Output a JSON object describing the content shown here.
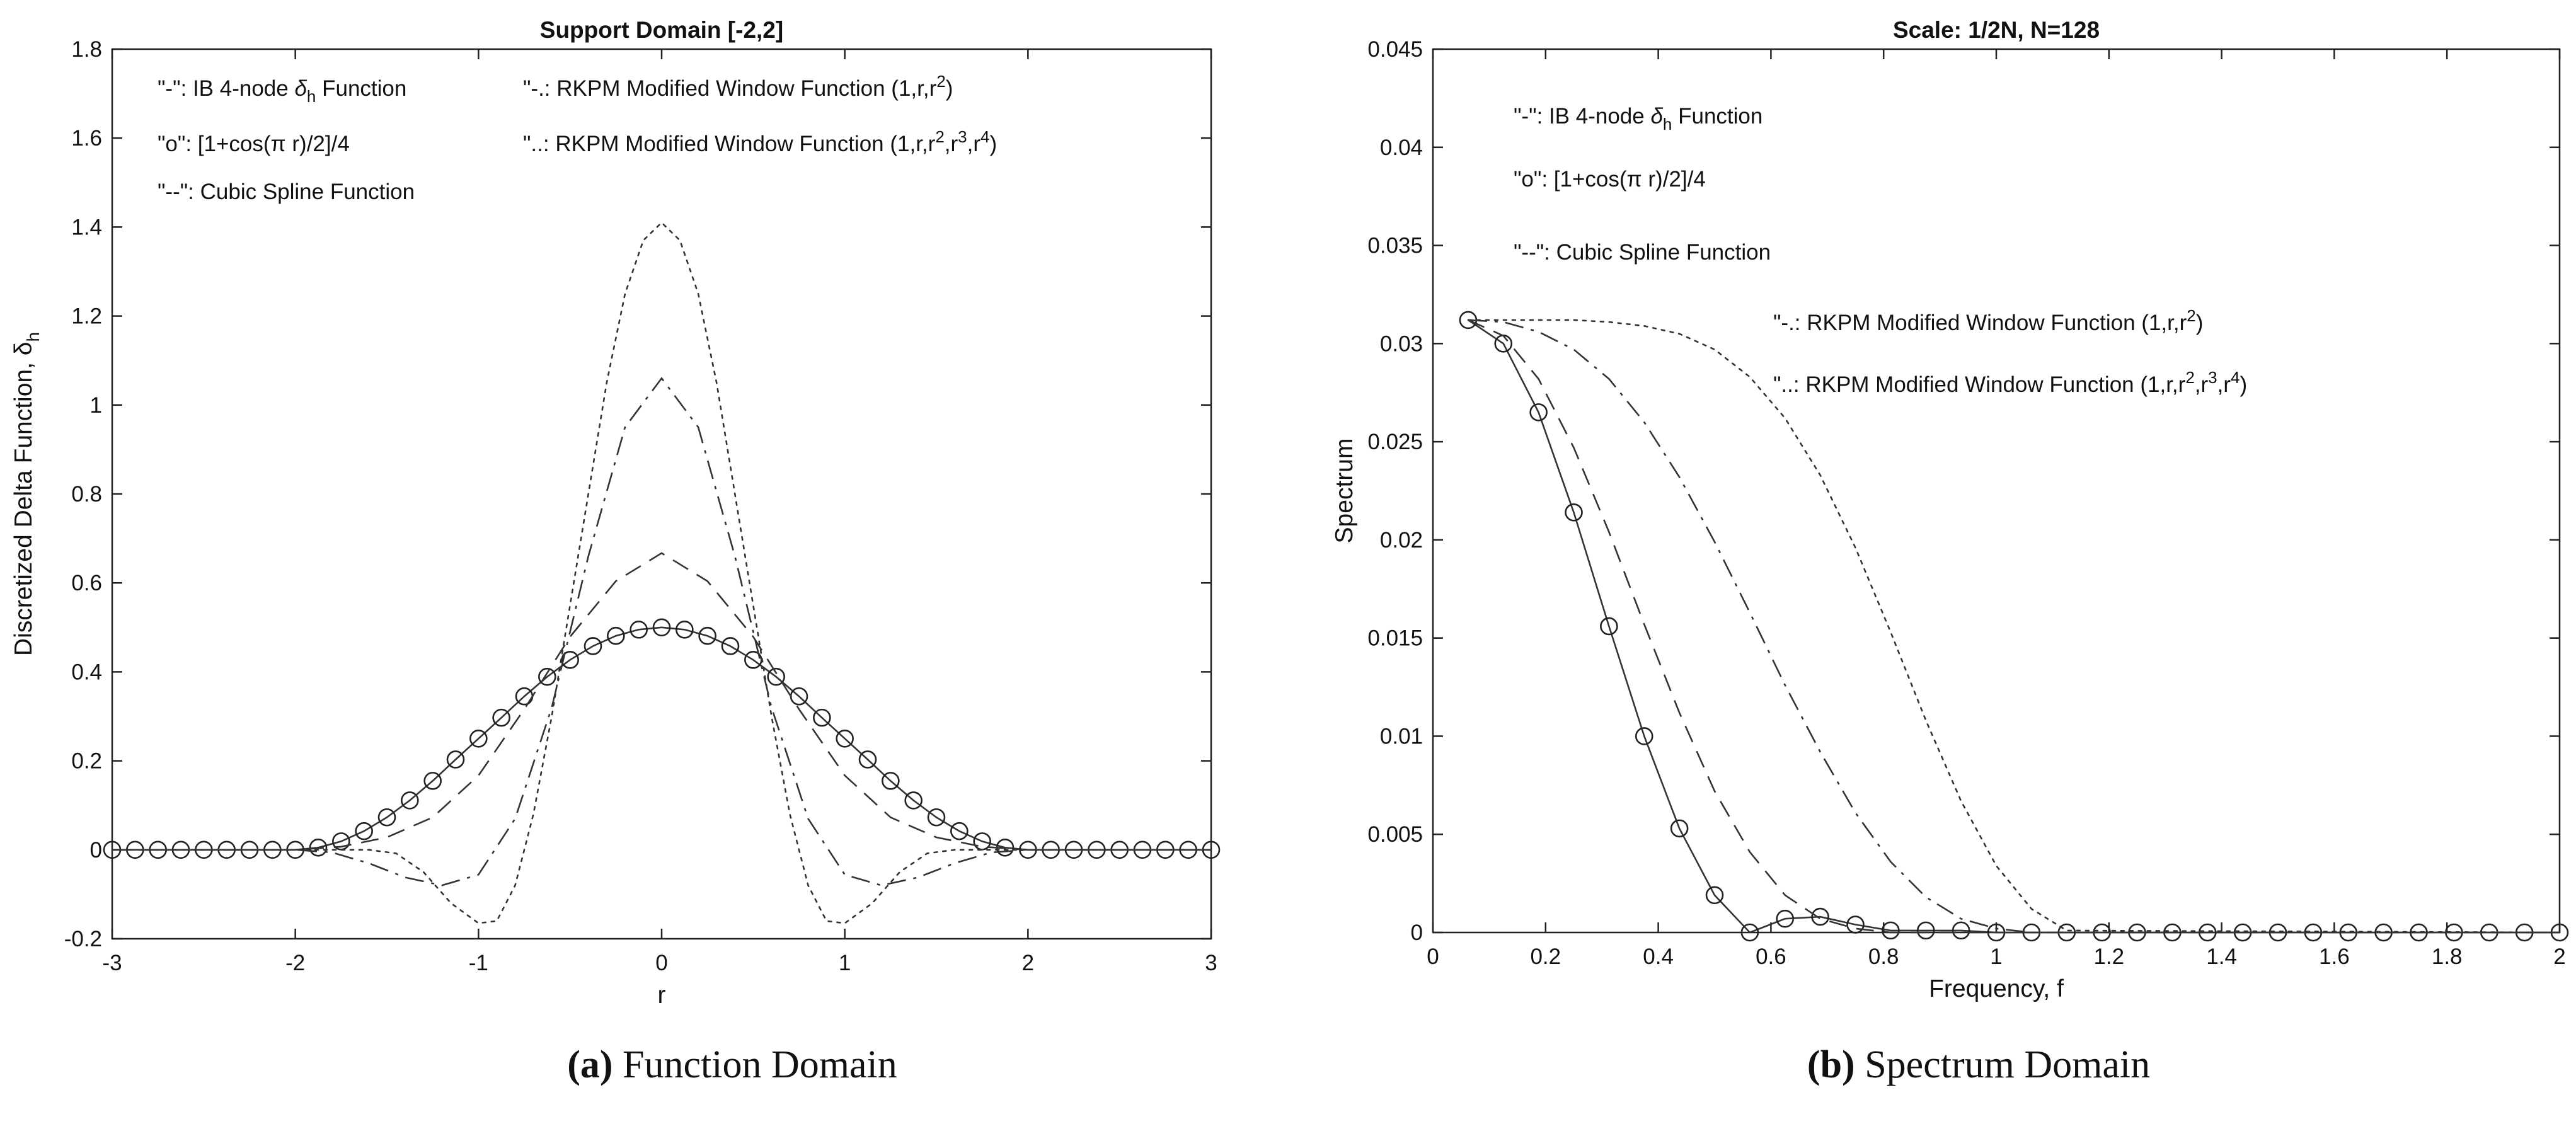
{
  "chart_data": [
    {
      "type": "line",
      "panel": "a",
      "title": "Support Domain [-2,2]",
      "xlabel": "r",
      "ylabel": "Discretized Delta Function, δ",
      "ylabel_sub": "h",
      "xlim": [
        -3,
        3
      ],
      "ylim": [
        -0.2,
        1.8
      ],
      "xticks": [
        "-3",
        "-2",
        "-1",
        "0",
        "1",
        "2",
        "3"
      ],
      "yticks": [
        "-0.2",
        "0",
        "0.2",
        "0.4",
        "0.6",
        "0.8",
        "1",
        "1.2",
        "1.4",
        "1.6",
        "1.8"
      ],
      "legend": [
        {
          "prefix": "\"-\": IB 4-node ",
          "sym": "δ",
          "sub": "h",
          "suffix": " Function"
        },
        {
          "prefix": "\"o\": [1+cos(π r)/2]/4"
        },
        {
          "prefix": "\"--\": Cubic Spline Function"
        },
        {
          "prefix": "\"-.: RKPM Modified Window Function (1,r,r",
          "sup": "2",
          "suffix": ")"
        },
        {
          "prefix": "\"..: RKPM Modified Window Function (1,r,r",
          "sup": "2",
          "mid": ",r",
          "sup2": "3",
          "mid2": ",r",
          "sup3": "4",
          "suffix": ")"
        }
      ],
      "series": [
        {
          "name": "IB 4-node delta_h Function",
          "style": "solid-circle",
          "x": [
            -3,
            -2.875,
            -2.75,
            -2.625,
            -2.5,
            -2.375,
            -2.25,
            -2.125,
            -2,
            -1.875,
            -1.75,
            -1.625,
            -1.5,
            -1.375,
            -1.25,
            -1.125,
            -1,
            -0.875,
            -0.75,
            -0.625,
            -0.5,
            -0.375,
            -0.25,
            -0.125,
            0,
            0.125,
            0.25,
            0.375,
            0.5,
            0.625,
            0.75,
            0.875,
            1,
            1.125,
            1.25,
            1.375,
            1.5,
            1.625,
            1.75,
            1.875,
            2,
            2.125,
            2.25,
            2.375,
            2.5,
            2.625,
            2.75,
            2.875,
            3
          ],
          "y": [
            0,
            0,
            0,
            0,
            0,
            0,
            0,
            0,
            0,
            0.005,
            0.019,
            0.042,
            0.073,
            0.111,
            0.155,
            0.203,
            0.25,
            0.297,
            0.345,
            0.389,
            0.427,
            0.458,
            0.481,
            0.495,
            0.5,
            0.495,
            0.481,
            0.458,
            0.427,
            0.389,
            0.345,
            0.297,
            0.25,
            0.203,
            0.155,
            0.111,
            0.073,
            0.042,
            0.019,
            0.005,
            0,
            0,
            0,
            0,
            0,
            0,
            0,
            0,
            0
          ]
        },
        {
          "name": "Cubic Spline Function",
          "style": "dashed",
          "x": [
            -3,
            -2,
            -1.75,
            -1.5,
            -1.25,
            -1,
            -0.75,
            -0.5,
            -0.25,
            0,
            0.25,
            0.5,
            0.75,
            1,
            1.25,
            1.5,
            1.75,
            2,
            3
          ],
          "y": [
            0,
            0,
            0.007,
            0.028,
            0.073,
            0.167,
            0.316,
            0.479,
            0.604,
            0.667,
            0.604,
            0.479,
            0.316,
            0.167,
            0.073,
            0.028,
            0.007,
            0,
            0
          ]
        },
        {
          "name": "RKPM Modified Window Function (1,r,r^2)",
          "style": "dashdot",
          "x": [
            -3,
            -2,
            -1.8,
            -1.6,
            -1.4,
            -1.2,
            -1,
            -0.8,
            -0.6,
            -0.4,
            -0.2,
            0,
            0.2,
            0.4,
            0.6,
            0.8,
            1,
            1.2,
            1.4,
            1.6,
            1.8,
            2,
            3
          ],
          "y": [
            0,
            0,
            -0.006,
            -0.03,
            -0.062,
            -0.08,
            -0.056,
            0.07,
            0.32,
            0.66,
            0.95,
            1.06,
            0.95,
            0.66,
            0.32,
            0.07,
            -0.056,
            -0.08,
            -0.062,
            -0.03,
            -0.006,
            0,
            0
          ]
        },
        {
          "name": "RKPM Modified Window Function (1,r,r^2,r^3,r^4)",
          "style": "dotted",
          "x": [
            -3,
            -1.6,
            -1.45,
            -1.3,
            -1.15,
            -1,
            -0.9,
            -0.8,
            -0.7,
            -0.6,
            -0.5,
            -0.4,
            -0.3,
            -0.2,
            -0.1,
            0,
            0.1,
            0.2,
            0.3,
            0.4,
            0.5,
            0.6,
            0.7,
            0.8,
            0.9,
            1,
            1.15,
            1.3,
            1.45,
            1.6,
            3
          ],
          "y": [
            0,
            0,
            -0.008,
            -0.05,
            -0.12,
            -0.165,
            -0.16,
            -0.08,
            0.08,
            0.3,
            0.55,
            0.8,
            1.05,
            1.25,
            1.37,
            1.41,
            1.37,
            1.25,
            1.05,
            0.8,
            0.55,
            0.3,
            0.08,
            -0.08,
            -0.16,
            -0.165,
            -0.12,
            -0.05,
            -0.008,
            0,
            0
          ]
        }
      ]
    },
    {
      "type": "line",
      "panel": "b",
      "title": "Scale: 1/2N, N=128",
      "xlabel": "Frequency, f",
      "ylabel": "Spectrum",
      "xlim": [
        0,
        2
      ],
      "ylim": [
        0,
        0.045
      ],
      "xticks": [
        "0",
        "0.2",
        "0.4",
        "0.6",
        "0.8",
        "1",
        "1.2",
        "1.4",
        "1.6",
        "1.8",
        "2"
      ],
      "yticks": [
        "0",
        "0.005",
        "0.01",
        "0.015",
        "0.02",
        "0.025",
        "0.03",
        "0.035",
        "0.04",
        "0.045"
      ],
      "legend": [
        {
          "prefix": "\"-\": IB 4-node ",
          "sym": "δ",
          "sub": "h",
          "suffix": " Function"
        },
        {
          "prefix": "\"o\": [1+cos(π r)/2]/4"
        },
        {
          "prefix": "\"--\": Cubic Spline Function"
        },
        {
          "prefix": "\"-.: RKPM Modified Window Function (1,r,r",
          "sup": "2",
          "suffix": ")"
        },
        {
          "prefix": "\"..: RKPM Modified Window Function (1,r,r",
          "sup": "2",
          "mid": ",r",
          "sup2": "3",
          "mid2": ",r",
          "sup3": "4",
          "suffix": ")"
        }
      ],
      "series": [
        {
          "name": "IB 4-node delta_h Function",
          "style": "solid-circle",
          "x": [
            0.0625,
            0.125,
            0.1875,
            0.25,
            0.3125,
            0.375,
            0.4375,
            0.5,
            0.5625,
            0.625,
            0.6875,
            0.75,
            0.8125,
            0.875,
            0.9375,
            1,
            1.0625,
            1.125,
            1.1875,
            1.25,
            1.3125,
            1.375,
            1.4375,
            1.5,
            1.5625,
            1.625,
            1.6875,
            1.75,
            1.8125,
            1.875,
            1.9375,
            2
          ],
          "y": [
            0.0312,
            0.03,
            0.0265,
            0.0214,
            0.0156,
            0.01,
            0.0053,
            0.0019,
            0,
            0.0007,
            0.0008,
            0.0004,
            0.0001,
            0.0001,
            0.0001,
            0,
            0,
            0,
            0,
            0,
            0,
            0,
            0,
            0,
            0,
            0,
            0,
            0,
            0,
            0,
            0,
            0
          ]
        },
        {
          "name": "Cubic Spline Function",
          "style": "dashed",
          "x": [
            0.0625,
            0.125,
            0.1875,
            0.25,
            0.3125,
            0.375,
            0.4375,
            0.5,
            0.5625,
            0.625,
            0.6875,
            0.75,
            0.8125,
            0.875,
            0.9375,
            2
          ],
          "y": [
            0.0312,
            0.0304,
            0.0282,
            0.0247,
            0.0204,
            0.0157,
            0.0112,
            0.0072,
            0.0041,
            0.0019,
            0.0007,
            0.0002,
            0,
            0,
            0,
            0
          ]
        },
        {
          "name": "RKPM Modified Window Function (1,r,r^2)",
          "style": "dashdot",
          "x": [
            0.0625,
            0.125,
            0.1875,
            0.25,
            0.3125,
            0.375,
            0.4375,
            0.5,
            0.5625,
            0.625,
            0.6875,
            0.75,
            0.8125,
            0.875,
            0.9375,
            1,
            1.0625,
            2
          ],
          "y": [
            0.0312,
            0.0311,
            0.0306,
            0.0297,
            0.0282,
            0.026,
            0.0232,
            0.0199,
            0.0163,
            0.0126,
            0.0092,
            0.0061,
            0.0036,
            0.0018,
            0.0007,
            0.0002,
            0,
            0
          ]
        },
        {
          "name": "RKPM Modified Window Function (1,r,r^2,r^3,r^4)",
          "style": "dotted",
          "x": [
            0.0625,
            0.125,
            0.1875,
            0.25,
            0.3125,
            0.375,
            0.4375,
            0.5,
            0.5625,
            0.625,
            0.6875,
            0.75,
            0.8125,
            0.875,
            0.9375,
            1,
            1.0625,
            1.125,
            2
          ],
          "y": [
            0.0312,
            0.0312,
            0.0312,
            0.0312,
            0.0311,
            0.0309,
            0.0305,
            0.0297,
            0.0283,
            0.0262,
            0.0233,
            0.0196,
            0.0153,
            0.0108,
            0.0067,
            0.0034,
            0.0012,
            0.0001,
            0
          ]
        }
      ]
    }
  ],
  "captions": [
    {
      "label": "(a)",
      "text": " Function Domain"
    },
    {
      "label": "(b)",
      "text": " Spectrum Domain"
    }
  ]
}
